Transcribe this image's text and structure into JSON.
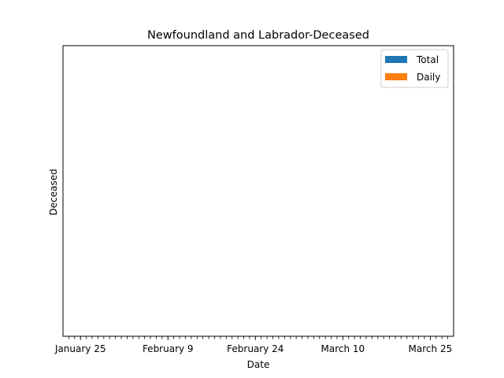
{
  "chart_data": {
    "type": "bar",
    "title": "Newfoundland and Labrador-Deceased",
    "xlabel": "Date",
    "ylabel": "Deceased",
    "x_start": "January 22",
    "x_end": "March 29",
    "major_ticks": [
      {
        "date": "January 25",
        "label": "January 25"
      },
      {
        "date": "February 9",
        "label": "February 9"
      },
      {
        "date": "February 24",
        "label": "February 24"
      },
      {
        "date": "March 10",
        "label": "March 10"
      },
      {
        "date": "March 25",
        "label": "March 25"
      }
    ],
    "y_tick_labels": [],
    "legend_position": "top-right",
    "grid": false,
    "series": [
      {
        "name": "Total",
        "color": "#1f77b4",
        "values": []
      },
      {
        "name": "Daily",
        "color": "#ff7f0e",
        "values": []
      }
    ]
  }
}
